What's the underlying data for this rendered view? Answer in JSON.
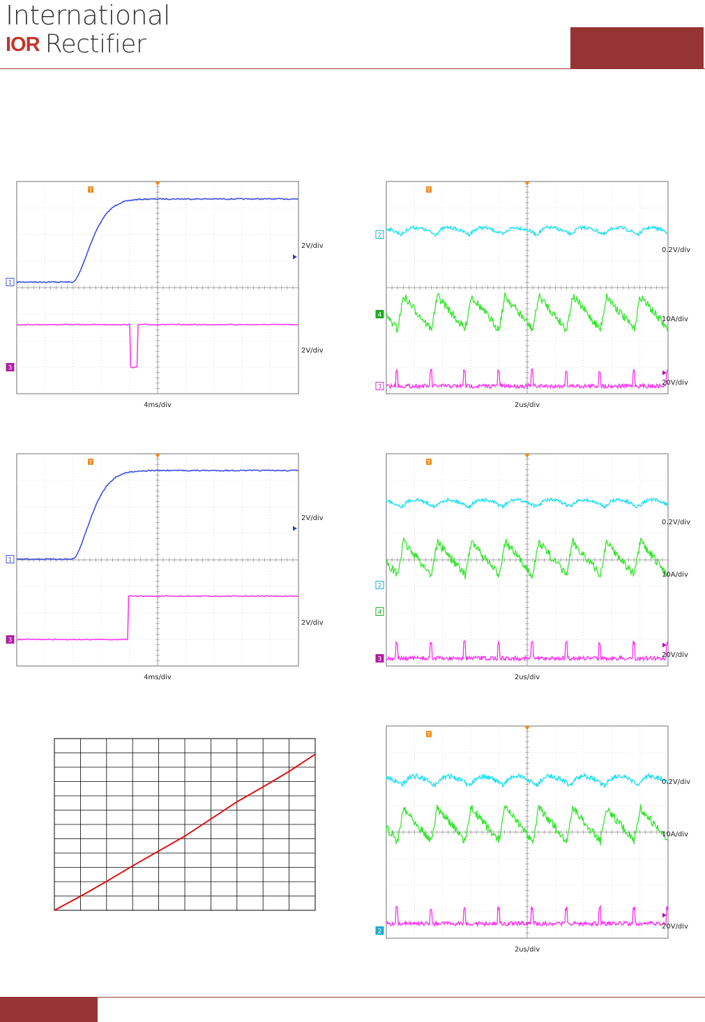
{
  "header": {
    "brand_line1": "International",
    "logo_text": "IOR",
    "brand_line2": "Rectifier"
  },
  "colors": {
    "accent": "#963333",
    "trace_blue": "#3a4fe0",
    "trace_magenta": "#ff2bf0",
    "trace_cyan": "#22e0f0",
    "trace_green": "#33e62a",
    "plot_red": "#e01010"
  },
  "scopes": [
    {
      "id": "startup-1",
      "time_label": "4ms/div",
      "scale_labels": [
        "2V/div",
        "2V/div"
      ],
      "channel_markers": [
        "1",
        "3"
      ]
    },
    {
      "id": "waveforms-1",
      "time_label": "2us/div",
      "scale_labels": [
        "0.2V/div",
        "10A/div",
        "20V/div"
      ],
      "channel_markers": [
        "2",
        "4",
        "3"
      ]
    },
    {
      "id": "startup-2",
      "time_label": "4ms/div",
      "scale_labels": [
        "2V/div",
        "2V/div"
      ],
      "channel_markers": [
        "1",
        "3"
      ]
    },
    {
      "id": "waveforms-2",
      "time_label": "2us/div",
      "scale_labels": [
        "0.2V/div",
        "10A/div",
        "20V/div"
      ],
      "channel_markers": [
        "2",
        "4",
        "3"
      ]
    },
    {
      "id": "waveforms-3",
      "time_label": "2us/div",
      "scale_labels": [
        "0.2V/div",
        "10A/div",
        "20V/div"
      ],
      "channel_markers": [
        "2"
      ]
    }
  ],
  "chart_data": {
    "type": "line",
    "title": "",
    "xlabel": "",
    "ylabel": "",
    "grid": true,
    "x": [
      0,
      1,
      2,
      3,
      4,
      5,
      6,
      7,
      8,
      9,
      10
    ],
    "series": [
      {
        "values": [
          0.0,
          0.9,
          1.85,
          2.85,
          3.8,
          4.75,
          5.85,
          6.95,
          7.9,
          8.9,
          10.0
        ]
      }
    ],
    "xlim": [
      0,
      10
    ],
    "ylim": [
      0,
      11
    ]
  }
}
